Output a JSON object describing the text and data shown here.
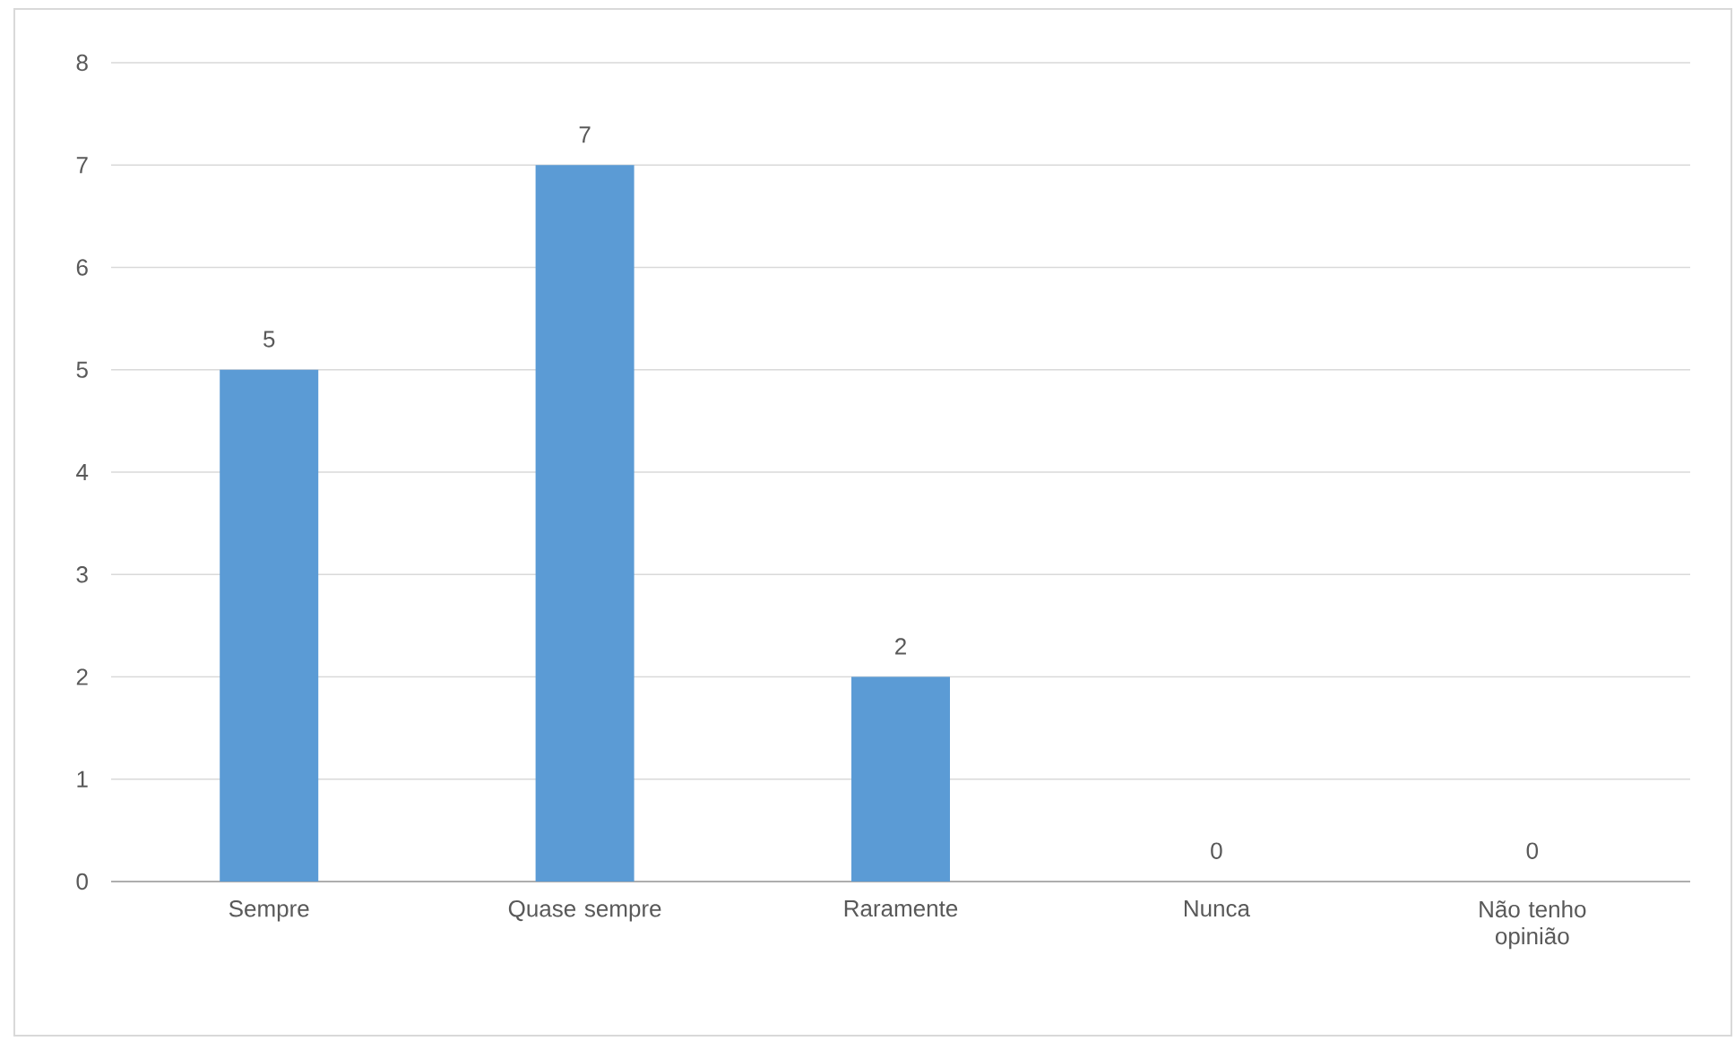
{
  "chart_data": {
    "type": "bar",
    "categories": [
      "Sempre",
      "Quase sempre",
      "Raramente",
      "Nunca",
      "Não tenho opinião"
    ],
    "values": [
      5,
      7,
      2,
      0,
      0
    ],
    "color": "#5b9bd5",
    "ylim": [
      0,
      8
    ],
    "yticks": [
      0,
      1,
      2,
      3,
      4,
      5,
      6,
      7,
      8
    ],
    "grid": "y",
    "data_labels": true
  }
}
